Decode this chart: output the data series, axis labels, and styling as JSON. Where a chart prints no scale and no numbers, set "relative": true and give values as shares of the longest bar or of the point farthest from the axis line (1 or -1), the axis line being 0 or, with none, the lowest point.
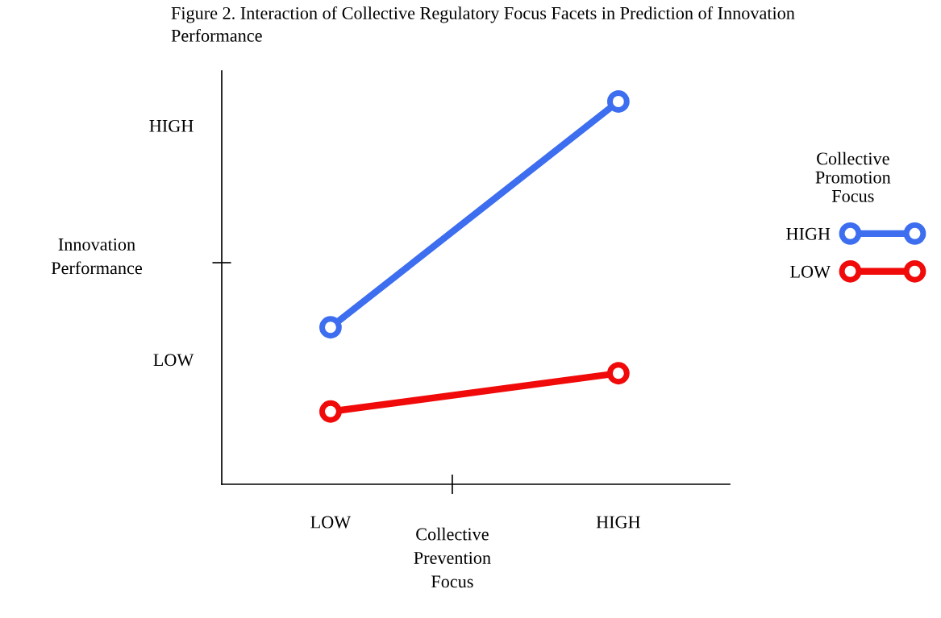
{
  "chart_data": {
    "type": "line",
    "title": "Figure 2. Interaction of Collective Regulatory Focus Facets in Prediction of Innovation Performance",
    "xlabel": "Collective Prevention Focus",
    "ylabel": "Innovation Performance",
    "legend_title": "Collective Promotion Focus",
    "categories": [
      "LOW",
      "HIGH"
    ],
    "relative": true,
    "series": [
      {
        "name": "HIGH",
        "color": "#3d6ef0",
        "values": [
          0.41,
          1.0
        ]
      },
      {
        "name": "LOW",
        "color": "#f00a0a",
        "values": [
          0.19,
          0.29
        ]
      }
    ],
    "annotations": [
      "HIGH",
      "LOW"
    ],
    "marker": "circle",
    "line_style": "solid",
    "legend": "right",
    "grid": false
  }
}
